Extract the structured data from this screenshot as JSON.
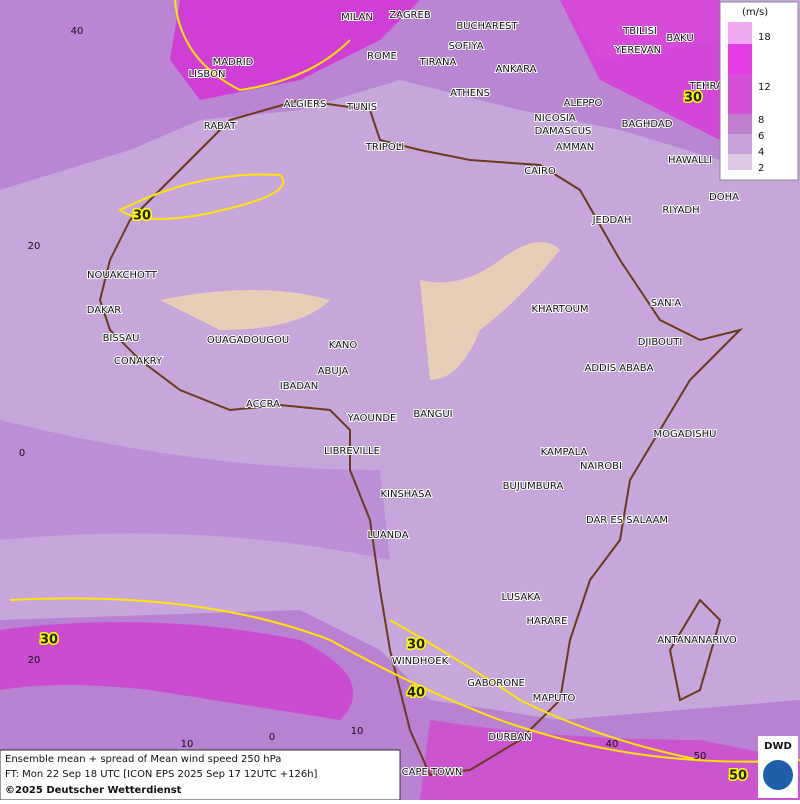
{
  "map": {
    "cities": [
      "MILAN",
      "ZAGREB",
      "BUCHAREST",
      "MADRID",
      "ROME",
      "SOFIYA",
      "TIRANA",
      "ANKARA",
      "TBILISI",
      "YEREVAN",
      "BAKU",
      "TEHRAN",
      "LISBON",
      "ALGIERS",
      "TUNIS",
      "ATHENS",
      "ALEPPO",
      "NICOSIA",
      "BAGHDAD",
      "RABAT",
      "TRIPOLI",
      "DAMASCUS",
      "AMMAN",
      "HAWALLI",
      "CAIRO",
      "DOHA",
      "RIYADH",
      "JEDDAH",
      "NOUAKCHOTT",
      "SAN'A",
      "DAKAR",
      "KHARTOUM",
      "BISSAU",
      "DJIBOUTI",
      "OUAGADOUGOU",
      "KANO",
      "CONAKRY",
      "ABUJA",
      "ADDIS ABABA",
      "IBADAN",
      "ACCRA",
      "BANGUI",
      "YAOUNDE",
      "MOGADISHU",
      "LIBREVILLE",
      "KAMPALA",
      "NAIROBI",
      "BUJUMBURA",
      "KINSHASA",
      "DAR ES SALAAM",
      "LUANDA",
      "LUSAKA",
      "HARARE",
      "ANTANANARIVO",
      "WINDHOEK",
      "GABORONE",
      "MAPUTO",
      "DURBAN",
      "CAPE TOWN"
    ],
    "grid_labels": [
      "40",
      "20",
      "0",
      "20",
      "10",
      "0",
      "10",
      "40",
      "50"
    ],
    "contour_labels": [
      "30",
      "30",
      "30",
      "30",
      "40",
      "50"
    ]
  },
  "legend": {
    "unit": "(m/s)",
    "ticks": [
      "18",
      "12",
      "8",
      "6",
      "4",
      "2"
    ]
  },
  "caption": {
    "line1": "Ensemble mean + spread of Mean wind speed 250 hPa",
    "line2": "FT: Mon 22 Sep 18 UTC [ICON EPS 2025 Sep 17 12UTC +126h]",
    "copyright": "©2025 Deutscher Wetterdienst"
  },
  "logo": "DWD"
}
